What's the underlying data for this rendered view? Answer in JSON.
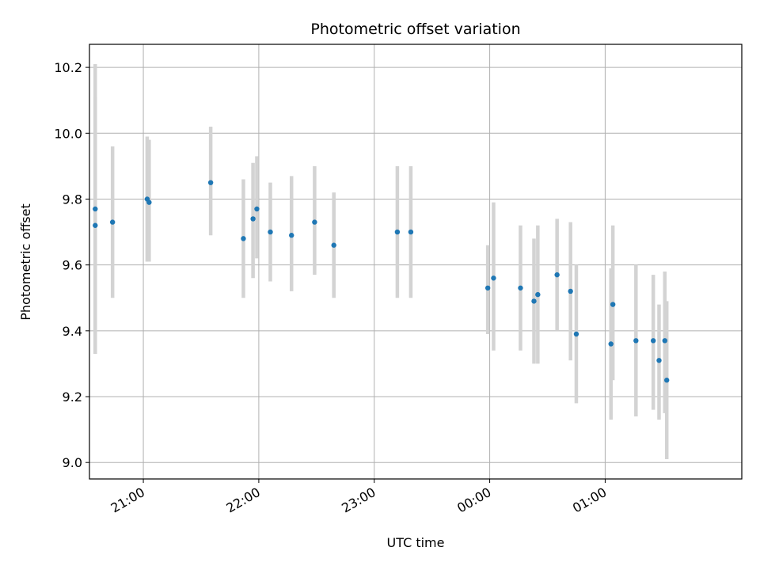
{
  "chart_data": {
    "type": "scatter",
    "title": "Photometric offset variation",
    "xlabel": "UTC time",
    "ylabel": "Photometric offset",
    "grid": true,
    "x_unit": "UTC",
    "x_ticks": [
      "21:00",
      "22:00",
      "23:00",
      "00:00",
      "01:00"
    ],
    "y_ticks": [
      "9.0",
      "9.2",
      "9.4",
      "9.6",
      "9.8",
      "10.0",
      "10.2"
    ],
    "xlim": [
      "20:32",
      "02:11"
    ],
    "ylim": [
      8.95,
      10.27
    ],
    "colors": {
      "marker": "#1f77b4",
      "errorbar": "#d3d3d3",
      "grid": "#b0b0b0"
    },
    "points": [
      {
        "x": "20:35",
        "y": 9.77,
        "ylo": 9.33,
        "yhi": 10.21
      },
      {
        "x": "20:35",
        "y": 9.72,
        "ylo": 9.33,
        "yhi": 10.11
      },
      {
        "x": "20:44",
        "y": 9.73,
        "ylo": 9.5,
        "yhi": 9.96
      },
      {
        "x": "21:02",
        "y": 9.8,
        "ylo": 9.61,
        "yhi": 9.99
      },
      {
        "x": "21:03",
        "y": 9.79,
        "ylo": 9.61,
        "yhi": 9.98
      },
      {
        "x": "21:35",
        "y": 9.85,
        "ylo": 9.69,
        "yhi": 10.02
      },
      {
        "x": "21:52",
        "y": 9.68,
        "ylo": 9.5,
        "yhi": 9.86
      },
      {
        "x": "21:57",
        "y": 9.74,
        "ylo": 9.56,
        "yhi": 9.91
      },
      {
        "x": "21:59",
        "y": 9.77,
        "ylo": 9.62,
        "yhi": 9.93
      },
      {
        "x": "22:06",
        "y": 9.7,
        "ylo": 9.55,
        "yhi": 9.85
      },
      {
        "x": "22:17",
        "y": 9.69,
        "ylo": 9.52,
        "yhi": 9.87
      },
      {
        "x": "22:29",
        "y": 9.73,
        "ylo": 9.57,
        "yhi": 9.9
      },
      {
        "x": "22:39",
        "y": 9.66,
        "ylo": 9.5,
        "yhi": 9.82
      },
      {
        "x": "23:12",
        "y": 9.7,
        "ylo": 9.5,
        "yhi": 9.9
      },
      {
        "x": "23:19",
        "y": 9.7,
        "ylo": 9.5,
        "yhi": 9.9
      },
      {
        "x": "23:59",
        "y": 9.53,
        "ylo": 9.39,
        "yhi": 9.66
      },
      {
        "x": "00:02",
        "y": 9.56,
        "ylo": 9.34,
        "yhi": 9.79
      },
      {
        "x": "00:16",
        "y": 9.53,
        "ylo": 9.34,
        "yhi": 9.72
      },
      {
        "x": "00:23",
        "y": 9.49,
        "ylo": 9.3,
        "yhi": 9.68
      },
      {
        "x": "00:25",
        "y": 9.51,
        "ylo": 9.3,
        "yhi": 9.72
      },
      {
        "x": "00:35",
        "y": 9.57,
        "ylo": 9.4,
        "yhi": 9.74
      },
      {
        "x": "00:42",
        "y": 9.52,
        "ylo": 9.31,
        "yhi": 9.73
      },
      {
        "x": "00:45",
        "y": 9.39,
        "ylo": 9.18,
        "yhi": 9.6
      },
      {
        "x": "01:03",
        "y": 9.36,
        "ylo": 9.13,
        "yhi": 9.59
      },
      {
        "x": "01:04",
        "y": 9.48,
        "ylo": 9.25,
        "yhi": 9.72
      },
      {
        "x": "01:16",
        "y": 9.37,
        "ylo": 9.14,
        "yhi": 9.6
      },
      {
        "x": "01:25",
        "y": 9.37,
        "ylo": 9.16,
        "yhi": 9.57
      },
      {
        "x": "01:28",
        "y": 9.31,
        "ylo": 9.13,
        "yhi": 9.48
      },
      {
        "x": "01:31",
        "y": 9.37,
        "ylo": 9.15,
        "yhi": 9.58
      },
      {
        "x": "01:32",
        "y": 9.25,
        "ylo": 9.01,
        "yhi": 9.49
      }
    ]
  }
}
